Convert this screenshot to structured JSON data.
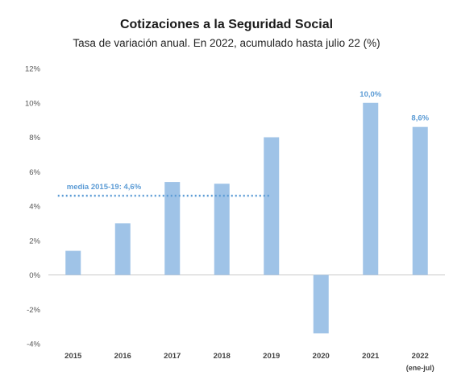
{
  "chart_data": {
    "type": "bar",
    "title": "Cotizaciones a la Seguridad Social",
    "subtitle": "Tasa de variación anual. En 2022, acumulado hasta julio 22 (%)",
    "categories": [
      "2015",
      "2016",
      "2017",
      "2018",
      "2019",
      "2020",
      "2021",
      "2022"
    ],
    "category_sublabels": [
      "",
      "",
      "",
      "",
      "",
      "",
      "",
      "(ene-jul)"
    ],
    "values": [
      1.4,
      3.0,
      5.4,
      5.3,
      8.0,
      -3.4,
      10.0,
      8.6
    ],
    "data_labels": [
      "",
      "",
      "",
      "",
      "",
      "",
      "10,0%",
      "8,6%"
    ],
    "ylim": [
      -4,
      12
    ],
    "yticks": [
      -4,
      -2,
      0,
      2,
      4,
      6,
      8,
      10,
      12
    ],
    "ytick_labels": [
      "-4%",
      "-2%",
      "0%",
      "2%",
      "4%",
      "6%",
      "8%",
      "10%",
      "12%"
    ],
    "reference_line": {
      "label": "media 2015-19: 4,6%",
      "value": 4.6,
      "from_category": "2015",
      "to_category": "2019"
    },
    "colors": {
      "bar": "#9fc3e7",
      "label": "#5b9bd5",
      "reference": "#5b9bd5",
      "axis": "#c8c8c8"
    },
    "grid": false,
    "xlabel": "",
    "ylabel": ""
  }
}
